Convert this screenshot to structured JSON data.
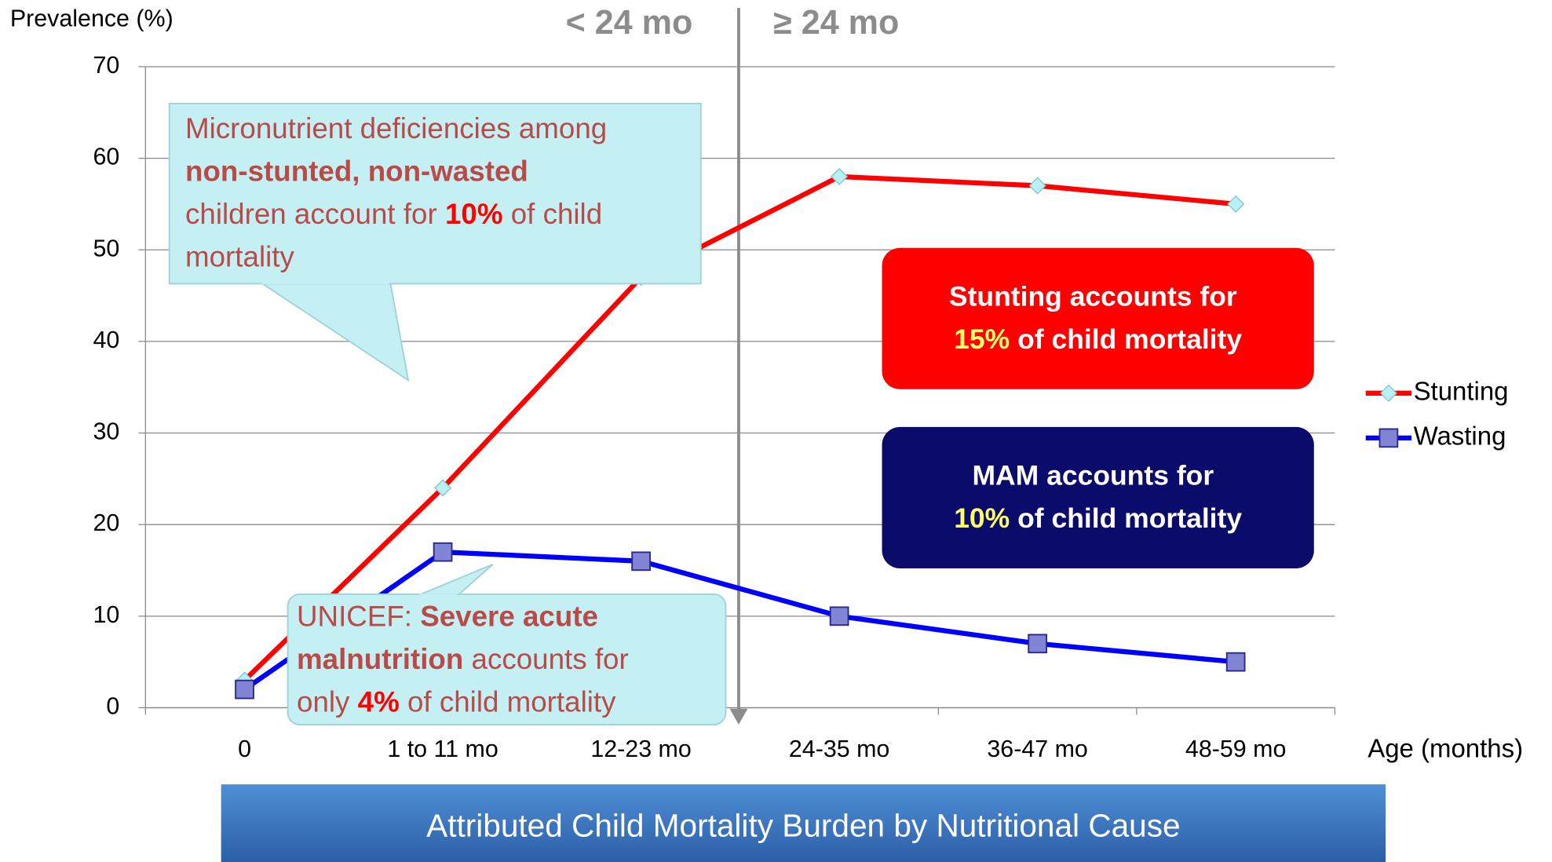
{
  "chart_data": {
    "type": "line",
    "y_label": "Prevalence (%)",
    "x_label": "Age (months)",
    "categories": [
      "0",
      "1 to 11 mo",
      "12-23 mo",
      "24-35 mo",
      "36-47 mo",
      "48-59 mo"
    ],
    "series": [
      {
        "name": "Stunting",
        "color": "#ff0000",
        "values": [
          3,
          24,
          47,
          58,
          57,
          55
        ]
      },
      {
        "name": "Wasting",
        "color": "#0000ff",
        "values": [
          2,
          17,
          16,
          10,
          7,
          5
        ]
      }
    ],
    "ylim": [
      0,
      70
    ],
    "yticks": [
      0,
      10,
      20,
      30,
      40,
      50,
      60,
      70
    ],
    "grid": true,
    "legend": "right",
    "divider": {
      "left": "< 24 mo",
      "right": "≥ 24 mo"
    },
    "annotations": [
      [
        [
          "Micronutrient deficiencies among"
        ],
        [
          "non-stunted, non-wasted"
        ],
        [
          "children account for ",
          "10%",
          " of child"
        ],
        [
          "mortality"
        ]
      ],
      [
        [
          "UNICEF: ",
          "Severe acute"
        ],
        [
          "malnutrition",
          " accounts for"
        ],
        [
          "only ",
          "4%",
          " of child mortality"
        ]
      ],
      [
        [
          "Stunting accounts for"
        ],
        [
          "15%",
          " of child mortality"
        ]
      ],
      [
        [
          "MAM accounts for"
        ],
        [
          "10%",
          " of child mortality"
        ]
      ]
    ],
    "banner": "Attributed Child Mortality Burden by Nutritional Cause"
  }
}
